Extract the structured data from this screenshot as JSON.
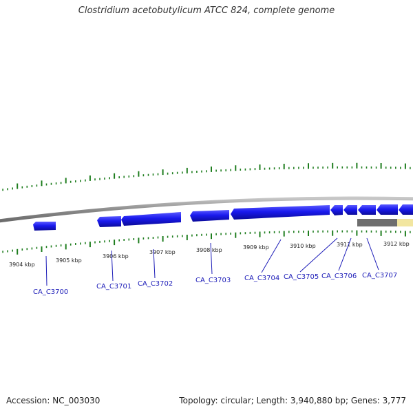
{
  "title": "Clostridium acetobutylicum ATCC 824, complete genome",
  "footer": {
    "accession": "Accession: NC_003030",
    "summary": "Topology: circular; Length: 3,940,880 bp; Genes: 3,777"
  },
  "colors": {
    "backbone": "#8a8a8a",
    "gene_fill": "#1a1aee",
    "gene_label": "#1c1cb8",
    "tick": "#1e7d1e",
    "scale_label": "#222222",
    "highlight_gray": "#6e6e6e",
    "highlight_yellow": "#f2e6a0"
  },
  "scale_labels": [
    "3904 kbp",
    "3905 kbp",
    "3906 kbp",
    "3907 kbp",
    "3908 kbp",
    "3909 kbp",
    "3910 kbp",
    "3911 kbp",
    "3912 kbp"
  ],
  "gene_labels": [
    "CA_C3700",
    "CA_C3701",
    "CA_C3702",
    "CA_C3703",
    "CA_C3704",
    "CA_C3705",
    "CA_C3706",
    "CA_C3707"
  ]
}
